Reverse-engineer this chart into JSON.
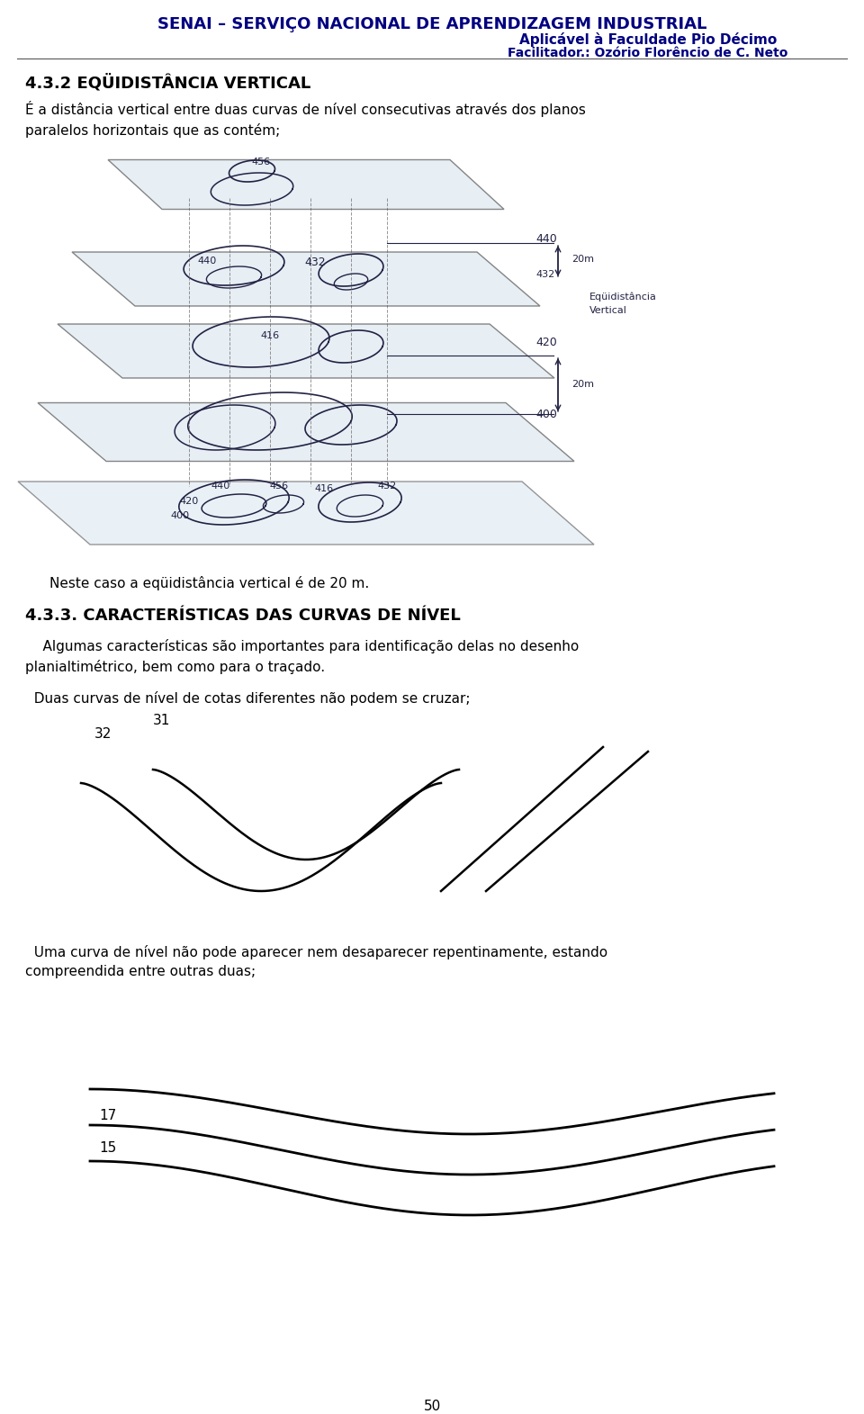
{
  "header_line1": "SENAI – SERVIÇO NACIONAL DE APRENDIZAGEM INDUSTRIAL",
  "header_line2": "Aplicável à Faculdade Pio Décimo",
  "header_line3": "Facilitador.: Ozório Florêncio de C. Neto",
  "header_color": "#000080",
  "section_title": "4.3.2 EQÜIDISTÂNCIA VERTICAL",
  "para1": "É a distância vertical entre duas curvas de nível consecutivas através dos planos\nparalelos horizontais que as contém;",
  "caption1": "Neste caso a eqüidistância vertical é de 20 m.",
  "section2_title": "4.3.3. CARACTERÍSTICAS DAS CURVAS DE NÍVEL",
  "para2": "    Algumas características são importantes para identificação delas no desenho\nplanialtimétrico, bem como para o traçado.",
  "para3": "  Duas curvas de nível de cotas diferentes não podem se cruzar;",
  "para4": "  Uma curva de nível não pode aparecer nem desaparecer repentinamente, estando\ncompreendida entre outras duas;",
  "page_number": "50",
  "text_color": "#000000",
  "bg_color": "#ffffff"
}
